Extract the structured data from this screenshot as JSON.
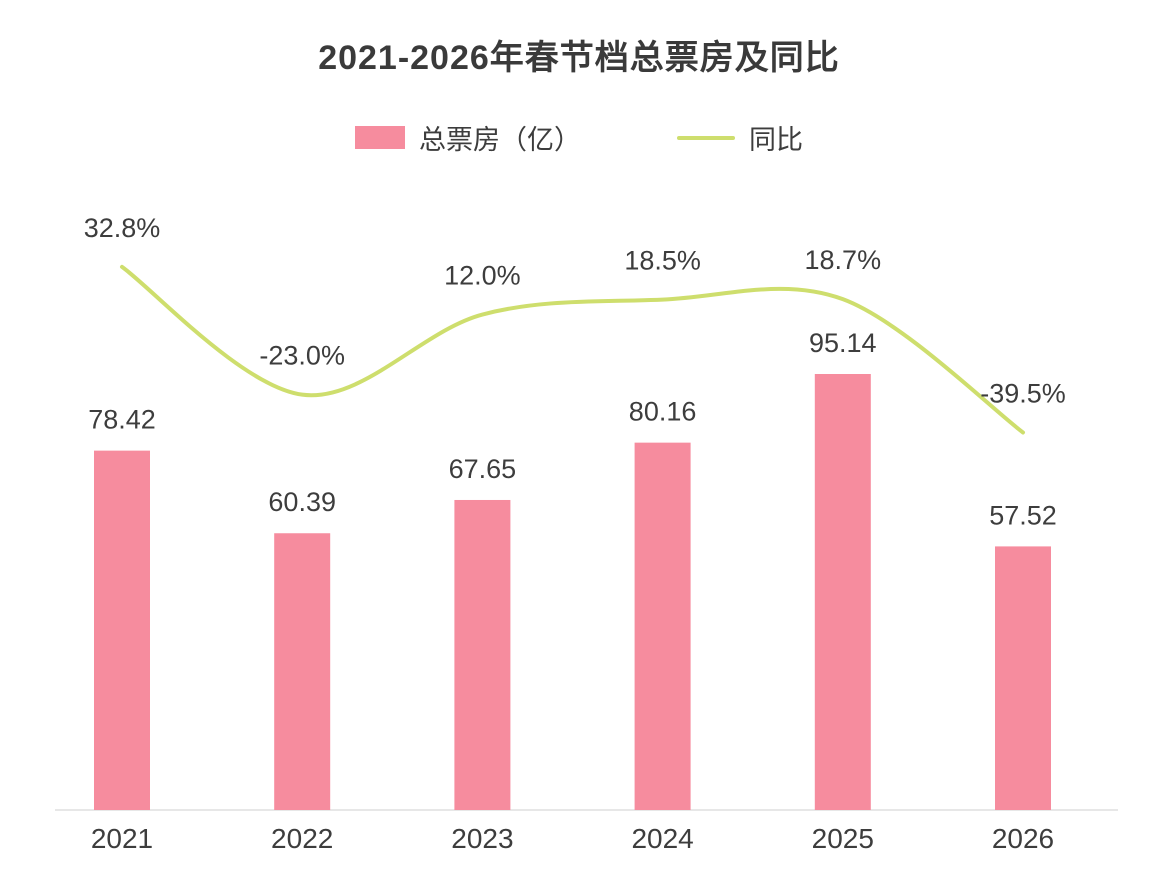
{
  "chart_data": {
    "type": "bar+line",
    "title": "2021-2026年春节档总票房及同比",
    "categories": [
      "2021",
      "2022",
      "2023",
      "2024",
      "2025",
      "2026"
    ],
    "series": [
      {
        "name": "总票房（亿）",
        "type": "bar",
        "color": "#f68c9e",
        "values": [
          78.42,
          60.39,
          67.65,
          80.16,
          95.14,
          57.52
        ],
        "labels": [
          "78.42",
          "60.39",
          "67.65",
          "80.16",
          "95.14",
          "57.52"
        ]
      },
      {
        "name": "同比",
        "type": "line",
        "color": "#cede6d",
        "values": [
          32.8,
          -23.0,
          12.0,
          18.5,
          18.7,
          -39.5
        ],
        "labels": [
          "32.8%",
          "-23.0%",
          "12.0%",
          "18.5%",
          "18.7%",
          "-39.5%"
        ]
      }
    ],
    "legend_position": "top",
    "grid": false,
    "axis_line_color": "#e7e7e7",
    "label_color": "#3d3d3d",
    "bar_axis_range": [
      0,
      100
    ],
    "line_axis_range": [
      -50,
      40
    ]
  }
}
